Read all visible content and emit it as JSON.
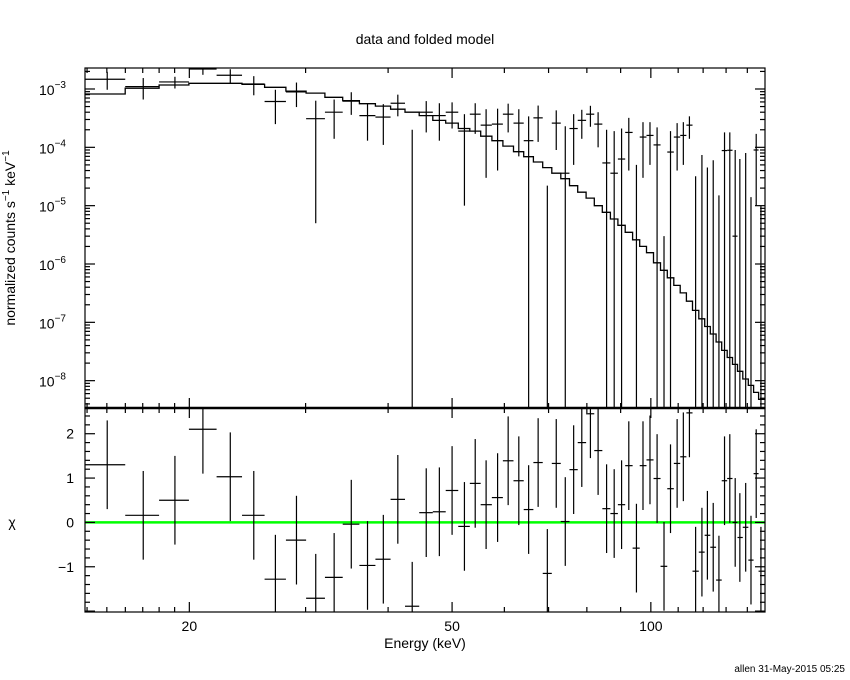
{
  "chart_data": {
    "type": "scatter",
    "title": "data and folded model",
    "xlabel": "Energy (keV)",
    "xscale": "log",
    "xlim": [
      13.9,
      148.9
    ],
    "xtick_labels": [
      {
        "value": 20,
        "label": "20"
      },
      {
        "value": 50,
        "label": "50"
      },
      {
        "value": 100,
        "label": "100"
      }
    ],
    "footer": "allen 31-May-2015 05:25",
    "colors": {
      "data": "#000000",
      "model": "#000000",
      "zero_line": "#00ff00"
    },
    "energy_keV": [
      15.02,
      17.03,
      19.02,
      20.97,
      23.07,
      25.04,
      27.0,
      29.06,
      31.08,
      33.14,
      35.18,
      37.23,
      39.34,
      41.38,
      43.51,
      45.69,
      47.83,
      50.0,
      52.2,
      54.2,
      56.3,
      58.6,
      60.8,
      63.1,
      65.3,
      67.5,
      69.7,
      71.9,
      74.2,
      76.4,
      78.6,
      81.0,
      83.2,
      85.7,
      88.0,
      90.3,
      92.6,
      95.1,
      97.3,
      99.7,
      102.2,
      104.7,
      107.1,
      109.6,
      112.0,
      114.4,
      116.9,
      119.5,
      121.8,
      124.3,
      126.8,
      129.3,
      131.7,
      134.2,
      136.4,
      139.2,
      141.8,
      144.4,
      146.8
    ],
    "top_panel": {
      "ylabel": "normalized counts s",
      "ylabel_unit1": "−1",
      "ylabel_mid": " keV",
      "ylabel_unit2": "−1",
      "yscale": "log",
      "ylim": [
        3.4e-09,
        0.00229
      ],
      "yticks": [
        {
          "value": 0.001,
          "base": "10",
          "exp": "−3"
        },
        {
          "value": 0.0001,
          "base": "10",
          "exp": "−4"
        },
        {
          "value": 1e-05,
          "base": "10",
          "exp": "−5"
        },
        {
          "value": 1e-06,
          "base": "10",
          "exp": "−6"
        },
        {
          "value": 1e-07,
          "base": "10",
          "exp": "−7"
        },
        {
          "value": 1e-08,
          "base": "10",
          "exp": "−8"
        }
      ],
      "data_rate": [
        0.00147,
        0.0011,
        0.00132,
        0.0022,
        0.00172,
        0.00122,
        0.00061,
        0.00089,
        0.00031,
        0.0004,
        0.00062,
        0.00035,
        0.00033,
        0.00057,
        0,
        0.0004,
        0.00035,
        0.0004,
        0.00019,
        0.00037,
        0.00024,
        0.00025,
        0.00037,
        0.00026,
        0.00013,
        0.00032,
        0,
        0.00026,
        3.6e-05,
        0.00021,
        0.00029,
        0.00037,
        0.00025,
        5.4e-05,
        3.6e-05,
        6.3e-05,
        0.00018,
        0,
        0.00015,
        0.00016,
        0.00011,
        0,
        8.3e-05,
        0.00015,
        0.00016,
        0.00024,
        0,
        0,
        0,
        0,
        0,
        8.8e-05,
        8.9e-05,
        3e-06,
        0,
        0,
        0,
        9e-05,
        0
      ],
      "data_err_low": [
        0.00097,
        0.00066,
        0.00102,
        0.00175,
        0.00126,
        0.00078,
        0.00025,
        0.00049,
        5e-06,
        0.00014,
        0.00036,
        0.00013,
        0.00011,
        0.00034,
        0,
        0.00018,
        0.00013,
        0.00021,
        1e-05,
        0.00017,
        3e-05,
        4e-05,
        0.00018,
        7e-05,
        0,
        0.000124,
        0,
        9e-05,
        0,
        5e-05,
        0.00014,
        0.000225,
        0.0001,
        0,
        0,
        0,
        4e-05,
        0,
        3e-05,
        5e-05,
        0,
        0,
        0,
        4e-05,
        5e-05,
        0.00014,
        0,
        0,
        0,
        0,
        0,
        0,
        0,
        0,
        0,
        0,
        0,
        1e-05,
        0
      ],
      "data_err_high": [
        0.00197,
        0.00154,
        0.00162,
        0.00265,
        0.00218,
        0.00166,
        0.00097,
        0.00129,
        0.00063,
        0.00066,
        0.00088,
        0.00057,
        0.00055,
        0.0008,
        0.0002,
        0.00062,
        0.00057,
        0.00059,
        0.00037,
        0.00057,
        0.00045,
        0.00046,
        0.00056,
        0.00045,
        0.00034,
        0.00052,
        2.2e-05,
        0.00043,
        0.00023,
        0.00037,
        0.00044,
        0.000515,
        0.0004,
        0.0002,
        0.00019,
        0.00021,
        0.00032,
        5e-05,
        0.00027,
        0.00027,
        0.00022,
        3e-06,
        0.00019,
        0.00026,
        0.00027,
        0.00034,
        3.2e-05,
        7.4e-05,
        4.5e-05,
        6e-05,
        1.5e-05,
        0.00018,
        0.00018,
        9e-05,
        6.3e-05,
        8e-05,
        1.4e-05,
        0.00017,
        1e-05
      ],
      "model": [
        0.00082,
        0.00103,
        0.00117,
        0.00125,
        0.00125,
        0.0012,
        0.00107,
        0.00092,
        0.00085,
        0.00072,
        0.00063,
        0.00056,
        0.00051,
        0.00045,
        0.0004,
        0.00035,
        0.00029,
        0.00026,
        0.00021,
        0.00019,
        0.000155,
        0.00013,
        0.000105,
        8.4e-05,
        6.9e-05,
        5.6e-05,
        4.5e-05,
        3.6e-05,
        2.9e-05,
        2.2e-05,
        1.7e-05,
        1.35e-05,
        1e-05,
        7.7e-06,
        5.9e-06,
        4.6e-06,
        3.5e-06,
        2.6e-06,
        2e-06,
        1.56e-06,
        1.05e-06,
        7.8e-07,
        5.8e-07,
        4.3e-07,
        3.2e-07,
        2.3e-07,
        1.6e-07,
        1.15e-07,
        8.5e-08,
        6.3e-08,
        4.6e-08,
        3.3e-08,
        2.5e-08,
        1.9e-08,
        1.45e-08,
        1.07e-08,
        8.3e-09,
        6.3e-09,
        4.8e-09
      ]
    },
    "bottom_panel": {
      "ylabel": "χ",
      "ylim": [
        -2.02,
        2.58
      ],
      "yticks": [
        {
          "value": 2,
          "label": "2"
        },
        {
          "value": 1,
          "label": "1"
        },
        {
          "value": 0,
          "label": "0"
        },
        {
          "value": -1,
          "label": "−1"
        }
      ],
      "chi": [
        1.3,
        0.16,
        0.5,
        2.1,
        1.03,
        0.16,
        -1.28,
        -0.4,
        -1.71,
        -1.24,
        -0.04,
        -0.97,
        -0.83,
        0.52,
        -1.89,
        0.22,
        0.24,
        0.72,
        -0.09,
        0.88,
        0.4,
        0.56,
        1.39,
        0.94,
        0.29,
        1.35,
        -1.15,
        1.33,
        0.02,
        1.19,
        1.8,
        2.45,
        1.62,
        0.31,
        0.2,
        0.4,
        1.28,
        -0.58,
        1.28,
        1.41,
        0.99,
        -0.99,
        0.76,
        1.33,
        1.48,
        2.47,
        -1.1,
        -0.67,
        -0.29,
        -0.56,
        -1.3,
        0.94,
        0.99,
        0.0,
        -0.34,
        -0.11,
        -0.85,
        1.1,
        -1.1
      ],
      "chi_err": 1,
      "zero_line": 0
    }
  }
}
